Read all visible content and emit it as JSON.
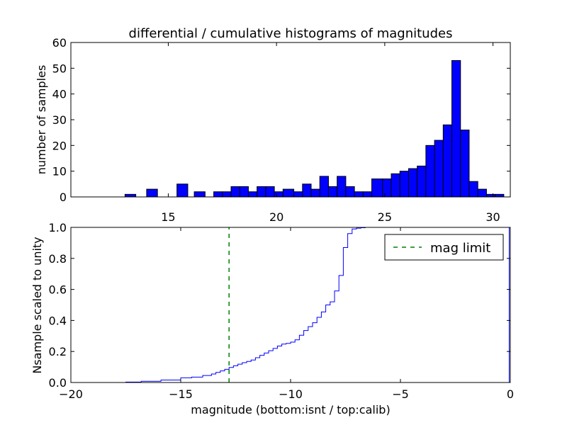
{
  "chart_data": [
    {
      "type": "bar",
      "title": "differential / cumulative histograms of magnitudes",
      "xlabel": "",
      "ylabel": "number of samples",
      "xlim": [
        10.5,
        30.8
      ],
      "ylim": [
        0,
        60
      ],
      "xticks": [
        15,
        20,
        25,
        30
      ],
      "yticks": [
        0,
        10,
        20,
        30,
        40,
        50,
        60
      ],
      "tick_position": "x ticks labeled below plot",
      "bar_color": "#0000ff",
      "edge_color": "#000000",
      "bins": [
        {
          "x0": 13.0,
          "x1": 13.5,
          "value": 1
        },
        {
          "x0": 14.0,
          "x1": 14.5,
          "value": 3
        },
        {
          "x0": 15.4,
          "x1": 15.9,
          "value": 5
        },
        {
          "x0": 16.2,
          "x1": 16.7,
          "value": 2
        },
        {
          "x0": 17.1,
          "x1": 17.5,
          "value": 2
        },
        {
          "x0": 17.5,
          "x1": 17.9,
          "value": 2
        },
        {
          "x0": 17.9,
          "x1": 18.3,
          "value": 4
        },
        {
          "x0": 18.3,
          "x1": 18.7,
          "value": 4
        },
        {
          "x0": 18.7,
          "x1": 19.1,
          "value": 2
        },
        {
          "x0": 19.1,
          "x1": 19.5,
          "value": 4
        },
        {
          "x0": 19.5,
          "x1": 19.9,
          "value": 4
        },
        {
          "x0": 19.9,
          "x1": 20.3,
          "value": 2
        },
        {
          "x0": 20.3,
          "x1": 20.8,
          "value": 3
        },
        {
          "x0": 20.8,
          "x1": 21.2,
          "value": 2
        },
        {
          "x0": 21.2,
          "x1": 21.6,
          "value": 5
        },
        {
          "x0": 21.6,
          "x1": 22.0,
          "value": 3
        },
        {
          "x0": 22.0,
          "x1": 22.4,
          "value": 8
        },
        {
          "x0": 22.4,
          "x1": 22.8,
          "value": 4
        },
        {
          "x0": 22.8,
          "x1": 23.2,
          "value": 8
        },
        {
          "x0": 23.2,
          "x1": 23.6,
          "value": 4
        },
        {
          "x0": 23.6,
          "x1": 24.0,
          "value": 2
        },
        {
          "x0": 24.0,
          "x1": 24.4,
          "value": 2
        },
        {
          "x0": 24.4,
          "x1": 24.9,
          "value": 7
        },
        {
          "x0": 24.9,
          "x1": 25.3,
          "value": 7
        },
        {
          "x0": 25.3,
          "x1": 25.7,
          "value": 9
        },
        {
          "x0": 25.7,
          "x1": 26.1,
          "value": 10
        },
        {
          "x0": 26.1,
          "x1": 26.5,
          "value": 11
        },
        {
          "x0": 26.5,
          "x1": 26.9,
          "value": 12
        },
        {
          "x0": 26.9,
          "x1": 27.3,
          "value": 20
        },
        {
          "x0": 27.3,
          "x1": 27.7,
          "value": 22
        },
        {
          "x0": 27.7,
          "x1": 28.1,
          "value": 28
        },
        {
          "x0": 28.1,
          "x1": 28.5,
          "value": 53
        },
        {
          "x0": 28.5,
          "x1": 28.9,
          "value": 26
        },
        {
          "x0": 28.9,
          "x1": 29.3,
          "value": 6
        },
        {
          "x0": 29.3,
          "x1": 29.7,
          "value": 3
        },
        {
          "x0": 29.7,
          "x1": 30.1,
          "value": 1
        },
        {
          "x0": 30.1,
          "x1": 30.5,
          "value": 1
        }
      ]
    },
    {
      "type": "line",
      "step": true,
      "title": "",
      "xlabel": "magnitude (bottom:isnt / top:calib)",
      "ylabel": "Nsample scaled to unity",
      "xlim": [
        -20,
        0
      ],
      "ylim": [
        0,
        1.0
      ],
      "xticks": [
        -20,
        -15,
        -10,
        -5,
        0
      ],
      "xtick_labels": [
        "−20",
        "−15",
        "−10",
        "−5",
        "0"
      ],
      "yticks": [
        0.0,
        0.2,
        0.4,
        0.6,
        0.8,
        1.0
      ],
      "ytick_labels": [
        "0.0",
        "0.2",
        "0.4",
        "0.6",
        "0.8",
        "1.0"
      ],
      "legend_position": "top-right",
      "series": [
        {
          "name": "",
          "color": "#0000ff",
          "x": [
            -20,
            -17.5,
            -16.8,
            -15.9,
            -15.0,
            -14.5,
            -14.0,
            -13.6,
            -13.4,
            -13.2,
            -13.0,
            -12.8,
            -12.6,
            -12.4,
            -12.2,
            -12.0,
            -11.8,
            -11.6,
            -11.4,
            -11.2,
            -11.0,
            -10.8,
            -10.6,
            -10.4,
            -10.2,
            -10.0,
            -9.8,
            -9.6,
            -9.4,
            -9.2,
            -9.0,
            -8.8,
            -8.6,
            -8.4,
            -8.2,
            -8.0,
            -7.8,
            -7.6,
            -7.4,
            -7.2,
            -7.0,
            -6.8,
            -6.6,
            -6.4,
            -6.2,
            -6.0,
            -5.5,
            -5.0,
            -4.5,
            -4.0,
            -0.05
          ],
          "y": [
            0.0,
            0.003,
            0.008,
            0.016,
            0.03,
            0.035,
            0.045,
            0.055,
            0.065,
            0.075,
            0.085,
            0.097,
            0.108,
            0.118,
            0.128,
            0.136,
            0.145,
            0.16,
            0.175,
            0.19,
            0.205,
            0.22,
            0.235,
            0.248,
            0.252,
            0.26,
            0.275,
            0.305,
            0.335,
            0.36,
            0.385,
            0.42,
            0.455,
            0.5,
            0.52,
            0.59,
            0.69,
            0.87,
            0.96,
            0.99,
            0.995,
            0.998,
            1.0,
            1.0,
            1.0,
            1.0,
            1.0,
            1.0,
            1.0,
            1.0,
            1.0
          ]
        },
        {
          "name": "mag limit",
          "color": "#008000",
          "style": "dashed",
          "x": [
            -12.8,
            -12.8
          ],
          "y": [
            0,
            1.0
          ]
        }
      ]
    }
  ]
}
